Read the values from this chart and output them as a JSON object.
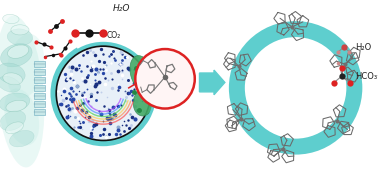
{
  "bg_color": "#ffffff",
  "teal": "#5ecece",
  "teal_light": "#a8e8e8",
  "teal_dark": "#3ababa",
  "green_dark": "#3a8a5a",
  "green_med": "#5aaa7a",
  "green_light": "#8acfaa",
  "gray_mol": "#888888",
  "gray_dark": "#555555",
  "gray_light": "#aaaaaa",
  "red": "#dd2222",
  "red_light": "#ee6666",
  "black": "#111111",
  "navy": "#1a3080",
  "blue_med": "#3050a0",
  "white": "#ffffff",
  "pink_light": "#ffe8e8",
  "rainbow": [
    "#ff4444",
    "#ff8844",
    "#ffcc44",
    "#44cc44",
    "#4488ff",
    "#aa44ff"
  ],
  "h2o_label": "H₂O",
  "co2_label": "CO₂",
  "h2o_label2": "H₂O",
  "hco3_label": "HCO₃⁻",
  "fig_width": 3.78,
  "fig_height": 1.83,
  "dpi": 100
}
